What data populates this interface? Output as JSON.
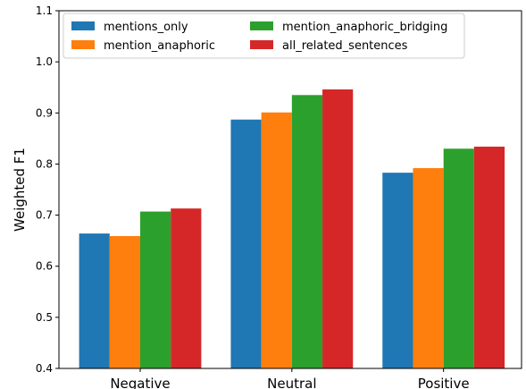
{
  "chart_data": {
    "type": "bar",
    "title": "",
    "xlabel": "",
    "ylabel": "Weighted F1",
    "ylim": [
      0.4,
      1.1
    ],
    "yticks": [
      "0.4",
      "0.5",
      "0.6",
      "0.7",
      "0.8",
      "0.9",
      "1.0",
      "1.1"
    ],
    "categories": [
      "Negative",
      "Neutral",
      "Positive"
    ],
    "grid": false,
    "legend_position": "top-left",
    "series": [
      {
        "name": "mentions_only",
        "color": "#1f77b4",
        "values": [
          0.664,
          0.887,
          0.783
        ]
      },
      {
        "name": "mention_anaphoric",
        "color": "#ff7f0e",
        "values": [
          0.659,
          0.901,
          0.792
        ]
      },
      {
        "name": "mention_anaphoric_bridging",
        "color": "#2ca02c",
        "values": [
          0.707,
          0.935,
          0.83
        ]
      },
      {
        "name": "all_related_sentences",
        "color": "#d62728",
        "values": [
          0.713,
          0.946,
          0.834
        ]
      }
    ]
  }
}
